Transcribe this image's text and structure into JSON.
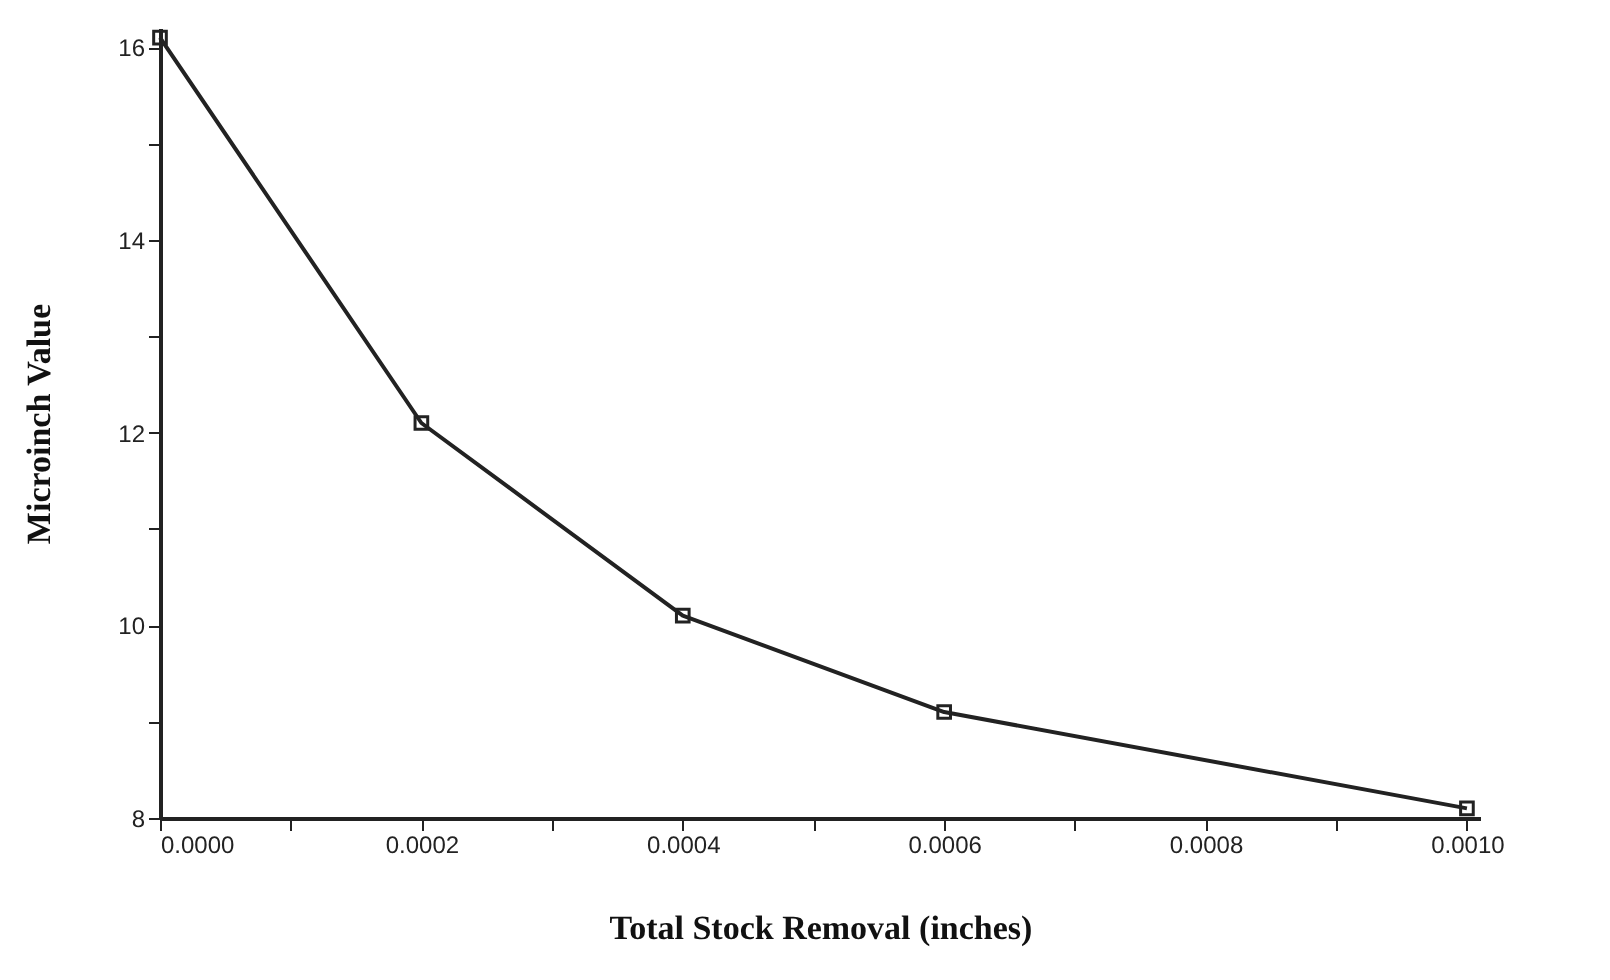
{
  "chart_data": {
    "type": "line",
    "xlabel": "Total Stock Removal (inches)",
    "ylabel": "Microinch Value",
    "x": [
      0,
      0.0002,
      0.0004,
      0.0006,
      0.001
    ],
    "series": [
      {
        "color": "#222222",
        "values": [
          16.1,
          12.1,
          10.1,
          9.1,
          8.1
        ]
      }
    ],
    "xlim": [
      0,
      0.00101
    ],
    "xticks": [
      {
        "value": 0,
        "label": "0.0000"
      },
      {
        "value": 0.0001,
        "label": null
      },
      {
        "value": 0.0002,
        "label": "0.0002"
      },
      {
        "value": 0.0003,
        "label": null
      },
      {
        "value": 0.0004,
        "label": "0.0004"
      },
      {
        "value": 0.0005,
        "label": null
      },
      {
        "value": 0.0006,
        "label": "0.0006"
      },
      {
        "value": 0.0007,
        "label": null
      },
      {
        "value": 0.0008,
        "label": "0.0008"
      },
      {
        "value": 0.0009,
        "label": null
      },
      {
        "value": 0.001,
        "label": "0.0010"
      }
    ],
    "ylim": [
      8,
      16.2
    ],
    "yticks": [
      8,
      {
        "value": 9,
        "label": null
      },
      10,
      {
        "value": 11,
        "label": null
      },
      12,
      {
        "value": 13,
        "label": null
      },
      14,
      {
        "value": 15,
        "label": null
      },
      16
    ],
    "grid": false,
    "legend": false,
    "marker": "square",
    "line_style": "solid"
  }
}
